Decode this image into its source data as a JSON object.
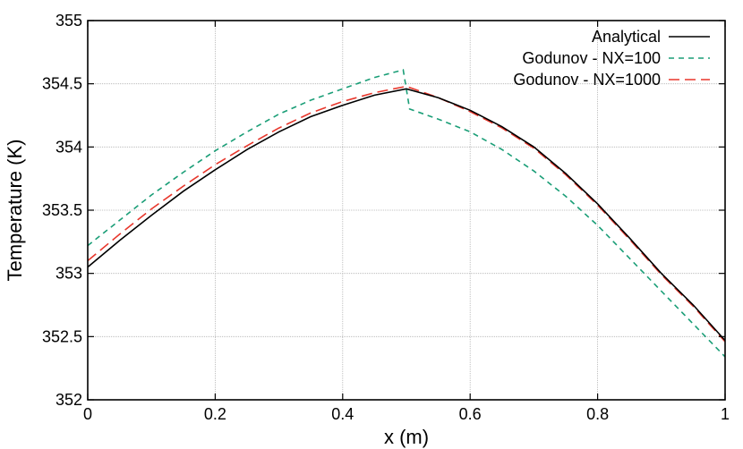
{
  "chart_data": {
    "type": "line",
    "title": "",
    "xlabel": "x (m)",
    "ylabel": "Temperature (K)",
    "xlim": [
      0,
      1
    ],
    "ylim": [
      352,
      355
    ],
    "xticks": [
      0,
      0.2,
      0.4,
      0.6,
      0.8,
      1
    ],
    "xtick_labels": [
      "0",
      "0.2",
      "0.4",
      "0.6",
      "0.8",
      "1"
    ],
    "yticks": [
      352,
      352.5,
      353,
      353.5,
      354,
      354.5,
      355
    ],
    "ytick_labels": [
      "352",
      "352.5",
      "353",
      "353.5",
      "354",
      "354.5",
      "355"
    ],
    "grid": true,
    "legend_position": "top-right",
    "series": [
      {
        "name": "Analytical",
        "color": "#000000",
        "style": "solid",
        "x": [
          0,
          0.05,
          0.1,
          0.15,
          0.2,
          0.25,
          0.3,
          0.35,
          0.4,
          0.45,
          0.5,
          0.55,
          0.6,
          0.65,
          0.7,
          0.75,
          0.8,
          0.85,
          0.9,
          0.95,
          1.0
        ],
        "y": [
          353.05,
          353.26,
          353.46,
          353.65,
          353.82,
          353.98,
          354.12,
          354.24,
          354.33,
          354.41,
          354.46,
          354.39,
          354.29,
          354.16,
          354.0,
          353.79,
          353.55,
          353.28,
          353.0,
          352.75,
          352.47
        ]
      },
      {
        "name": "Godunov - NX=100",
        "color": "#1a9e77",
        "style": "dashed",
        "x": [
          0,
          0.05,
          0.1,
          0.15,
          0.2,
          0.25,
          0.3,
          0.35,
          0.4,
          0.45,
          0.495,
          0.505,
          0.55,
          0.6,
          0.65,
          0.7,
          0.75,
          0.8,
          0.85,
          0.9,
          0.95,
          1.0
        ],
        "y": [
          353.22,
          353.42,
          353.62,
          353.8,
          353.97,
          354.12,
          354.26,
          354.37,
          354.46,
          354.55,
          354.61,
          354.3,
          354.22,
          354.12,
          353.98,
          353.81,
          353.61,
          353.38,
          353.12,
          352.86,
          352.6,
          352.34
        ]
      },
      {
        "name": "Godunov - NX=1000",
        "color": "#e8372c",
        "style": "long-dashed",
        "x": [
          0,
          0.05,
          0.1,
          0.15,
          0.2,
          0.25,
          0.3,
          0.35,
          0.4,
          0.45,
          0.5,
          0.55,
          0.6,
          0.65,
          0.7,
          0.75,
          0.8,
          0.85,
          0.9,
          0.95,
          1.0
        ],
        "y": [
          353.1,
          353.31,
          353.51,
          353.69,
          353.86,
          354.01,
          354.15,
          354.27,
          354.36,
          354.43,
          354.48,
          354.39,
          354.28,
          354.15,
          353.99,
          353.78,
          353.54,
          353.27,
          352.99,
          352.74,
          352.46
        ]
      }
    ]
  }
}
